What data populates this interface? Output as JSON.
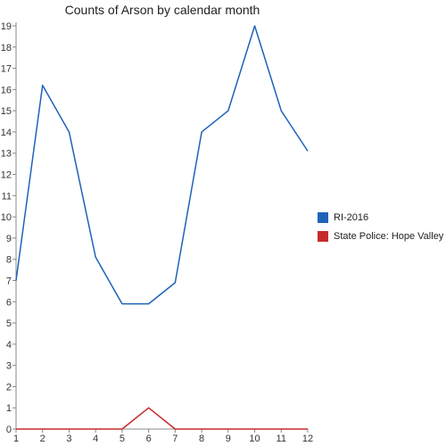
{
  "chart_data": {
    "type": "line",
    "title": "Counts of Arson by calendar month",
    "xlabel": "",
    "ylabel": "",
    "x": [
      1,
      2,
      3,
      4,
      5,
      6,
      7,
      8,
      9,
      10,
      11,
      12
    ],
    "ylim": [
      0,
      19
    ],
    "yticks": [
      0,
      1,
      2,
      3,
      4,
      5,
      6,
      7,
      8,
      9,
      10,
      11,
      12,
      13,
      14,
      15,
      16,
      17,
      18,
      19
    ],
    "grid": false,
    "legend_position": "right",
    "series": [
      {
        "name": "RI-2016",
        "color": "#1f63b8",
        "values": [
          7,
          16.2,
          14,
          8.1,
          5.9,
          5.9,
          6.9,
          14,
          15,
          19,
          15,
          13.1
        ]
      },
      {
        "name": "State Police: Hope Valley",
        "color": "#c62b2b",
        "values": [
          0,
          0,
          0,
          0,
          0,
          1,
          0,
          0,
          0,
          0,
          0,
          0
        ]
      }
    ]
  }
}
